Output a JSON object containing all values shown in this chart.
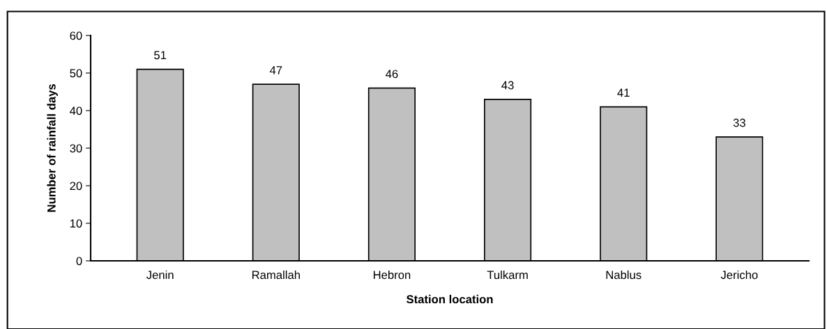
{
  "chart_data": {
    "type": "bar",
    "xlabel": "Station location",
    "ylabel": "Number of rainfall days",
    "categories": [
      "Jenin",
      "Ramallah",
      "Hebron",
      "Tulkarm",
      "Nablus",
      "Jericho"
    ],
    "values": [
      51,
      47,
      46,
      43,
      41,
      33
    ],
    "color": "#c0c0c0",
    "ylim": [
      0,
      60
    ],
    "yticks": [
      0,
      10,
      20,
      30,
      40,
      50,
      60
    ],
    "grid": false,
    "data_labels": true
  }
}
